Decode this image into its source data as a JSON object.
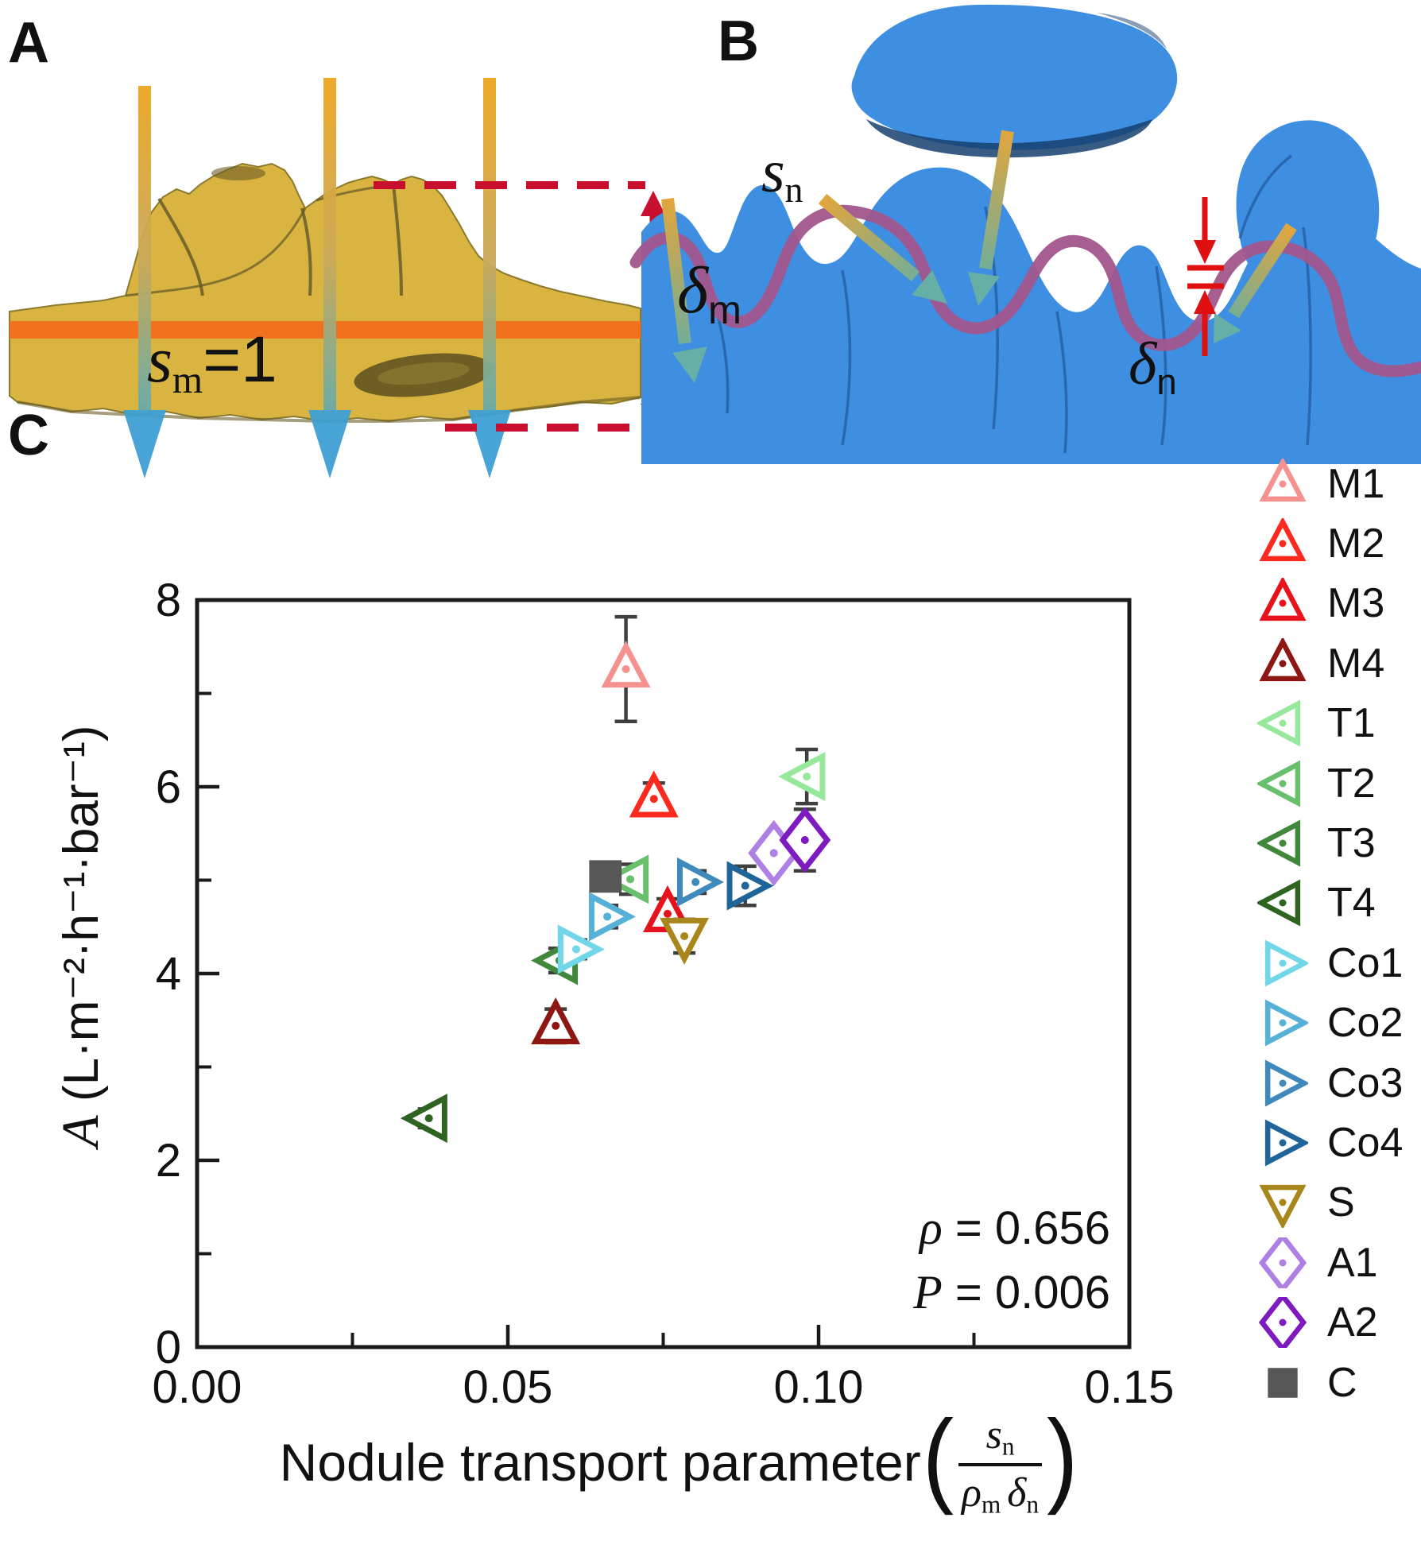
{
  "figure": {
    "panelA": {
      "label": "A",
      "sm": {
        "base": "s",
        "sub": "m",
        "eq": "=1"
      },
      "delta": {
        "base": "δ",
        "sub": "m"
      },
      "colors": {
        "membrane": "#D9B440",
        "stripe": "#F2711F",
        "flux_top": "#ECA51F",
        "flux_bottom": "#3FA0D4",
        "dashed_red": "#C8102E"
      }
    },
    "panelB": {
      "label": "B",
      "sn": {
        "base": "s",
        "sub": "n"
      },
      "delta": {
        "base": "δ",
        "sub": "n"
      },
      "colors": {
        "nodule_blue": "#3E8EE2",
        "shading_blue": "#16406E",
        "surface_line": "#A2568C",
        "measure_red": "#E01010"
      }
    },
    "panelC": {
      "label": "C"
    }
  },
  "chart_data": {
    "type": "scatter",
    "title": "",
    "ylabel_var": "A",
    "ylabel_units": " (L·m⁻²·h⁻¹·bar⁻¹)",
    "xlabel": {
      "prefix": "Nodule transport parameter ",
      "open": "(",
      "num_base": "s",
      "num_sub": "n",
      "den1_base": "ρ",
      "den1_sub": "m",
      "den2_base": "δ",
      "den2_sub": "n",
      "close": ")"
    },
    "xlim": [
      0,
      0.15
    ],
    "ylim": [
      0,
      8
    ],
    "x_major_ticks": [
      0.0,
      0.05,
      0.1,
      0.15
    ],
    "x_tick_labels": [
      "0.00",
      "0.05",
      "0.10",
      "0.15"
    ],
    "x_minor_ticks": [
      0.025,
      0.075,
      0.125
    ],
    "y_major_ticks": [
      0,
      2,
      4,
      6,
      8
    ],
    "y_tick_labels": [
      "0",
      "2",
      "4",
      "6",
      "8"
    ],
    "y_minor_ticks": [
      1,
      3,
      5,
      7
    ],
    "grid": false,
    "legend_position": "right",
    "error_bar_color": "#3F3F3F",
    "annotation": {
      "line1_var": "ρ",
      "line1_rest": " = 0.656",
      "line2_var": "P",
      "line2_rest": " = 0.006"
    },
    "series": [
      {
        "name": "M1",
        "shape": "triangle-up",
        "color": "#F5928F",
        "x": 0.069,
        "y": 7.26,
        "yerr": 0.56
      },
      {
        "name": "M2",
        "shape": "triangle-up",
        "color": "#FB2A1E",
        "x": 0.0735,
        "y": 5.87,
        "yerr": 0.17
      },
      {
        "name": "M3",
        "shape": "triangle-up",
        "color": "#E8121C",
        "x": 0.0757,
        "y": 4.64,
        "yerr": 0.16
      },
      {
        "name": "M4",
        "shape": "triangle-up",
        "color": "#8F1713",
        "x": 0.0577,
        "y": 3.44,
        "yerr": 0.18
      },
      {
        "name": "T1",
        "shape": "triangle-left",
        "color": "#98E89C",
        "x": 0.0981,
        "y": 6.11,
        "yerr": 0.29
      },
      {
        "name": "T2",
        "shape": "triangle-left",
        "color": "#68C06C",
        "x": 0.0697,
        "y": 5.01,
        "yerr": 0.16
      },
      {
        "name": "T3",
        "shape": "triangle-left",
        "color": "#41883B",
        "x": 0.0583,
        "y": 4.14,
        "yerr": 0.13
      },
      {
        "name": "T4",
        "shape": "triangle-left",
        "color": "#2E6322",
        "x": 0.0373,
        "y": 2.45,
        "yerr": 0.1
      },
      {
        "name": "Co1",
        "shape": "triangle-right",
        "color": "#70D6E8",
        "x": 0.061,
        "y": 4.26,
        "yerr": 0.1
      },
      {
        "name": "Co2",
        "shape": "triangle-right",
        "color": "#57B0D6",
        "x": 0.066,
        "y": 4.61,
        "yerr": 0.12
      },
      {
        "name": "Co3",
        "shape": "triangle-right",
        "color": "#3F89BC",
        "x": 0.0802,
        "y": 4.98,
        "yerr": 0.12
      },
      {
        "name": "Co4",
        "shape": "triangle-right",
        "color": "#20659A",
        "x": 0.0882,
        "y": 4.94,
        "yerr": 0.21
      },
      {
        "name": "S",
        "shape": "triangle-down",
        "color": "#A9861B",
        "x": 0.0784,
        "y": 4.4,
        "yerr": 0.18
      },
      {
        "name": "A1",
        "shape": "diamond",
        "color": "#AF80E4",
        "x": 0.0928,
        "y": 5.29,
        "yerr": 0.15
      },
      {
        "name": "A2",
        "shape": "diamond",
        "color": "#7D1BC0",
        "x": 0.0978,
        "y": 5.43,
        "yerr": 0.33
      },
      {
        "name": "C",
        "shape": "square",
        "color": "#575757",
        "x": 0.0657,
        "y": 5.04,
        "yerr": 0.06
      }
    ]
  }
}
